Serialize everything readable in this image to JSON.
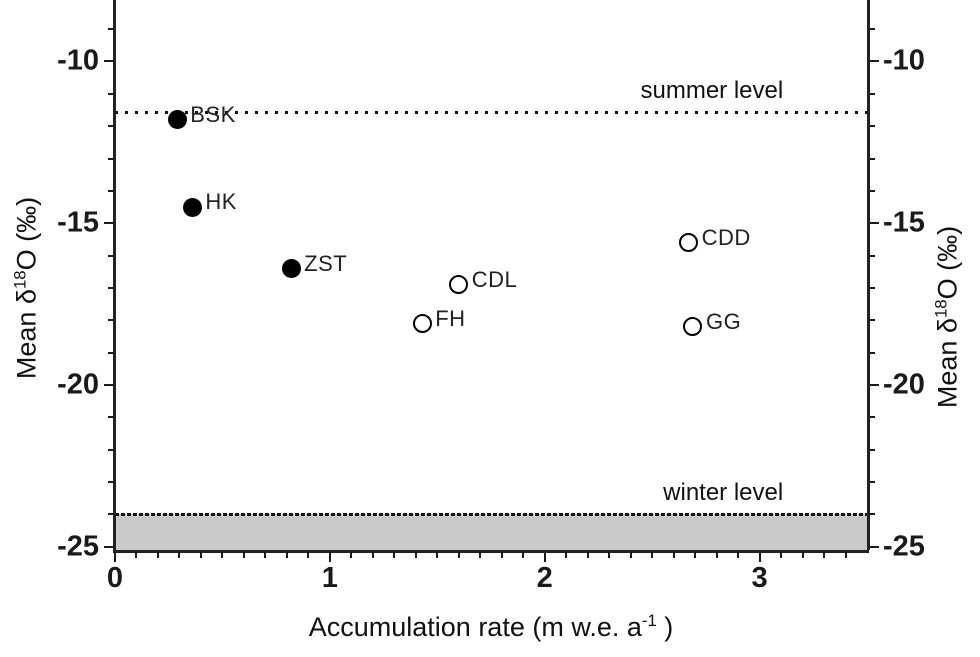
{
  "chart_data": {
    "type": "scatter",
    "title": "",
    "xlabel": "Accumulation rate (m w.e. a⁻¹ )",
    "ylabel": "Mean δ¹⁸O (‰)",
    "xlabel_parts": {
      "main": "Accumulation rate (m w.e. a",
      "sup": "-1",
      "end": " )"
    },
    "ylabel_parts": {
      "prefix": "Mean δ",
      "sup": "18",
      "suffix": "O (‰)"
    },
    "xlim": [
      0,
      3.5
    ],
    "ylim_bottom": -25.1,
    "ylim_top": -8.1,
    "x_major_ticks": [
      0,
      1,
      2,
      3
    ],
    "x_minor_step": 0.1,
    "y_major_ticks": [
      -10,
      -15,
      -20,
      -25
    ],
    "y_minor_step": 1,
    "grid": false,
    "series": [
      {
        "name": "filled-sites",
        "marker": "filled-circle",
        "points": [
          {
            "label": "BSK",
            "x": 0.29,
            "y": -11.8
          },
          {
            "label": "HK",
            "x": 0.36,
            "y": -14.5
          },
          {
            "label": "ZST",
            "x": 0.82,
            "y": -16.4
          }
        ]
      },
      {
        "name": "open-sites",
        "marker": "open-circle",
        "points": [
          {
            "label": "FH",
            "x": 1.43,
            "y": -18.1
          },
          {
            "label": "CDL",
            "x": 1.6,
            "y": -16.9
          },
          {
            "label": "CDD",
            "x": 2.67,
            "y": -15.6
          },
          {
            "label": "GG",
            "x": 2.69,
            "y": -18.2
          }
        ]
      }
    ],
    "reference_lines": [
      {
        "label": "summer level",
        "y": -11.55,
        "style": "dotted",
        "band": false
      },
      {
        "label": "winter level",
        "y": -24.0,
        "style": "dense",
        "band": true
      }
    ],
    "colors": {
      "marker": "#000000",
      "axis": "#222222",
      "band": "#c9c9c9",
      "background": "#ffffff"
    }
  }
}
